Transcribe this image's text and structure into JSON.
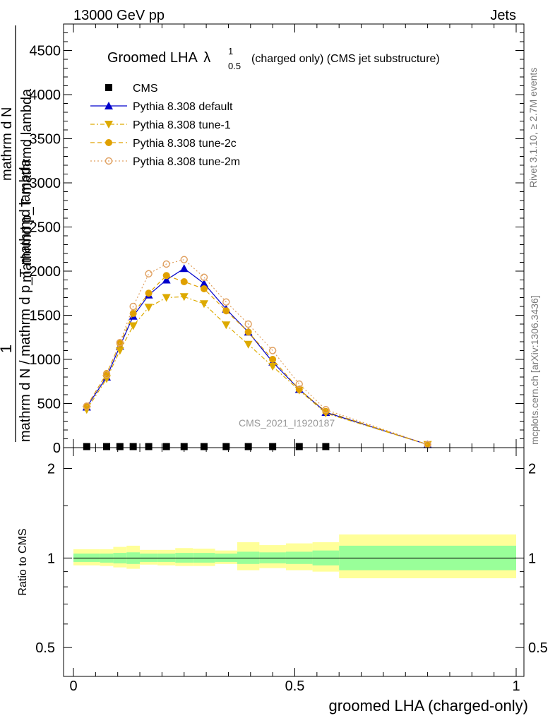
{
  "header": {
    "left": "13000 GeV pp",
    "right": "Jets"
  },
  "side_text": {
    "rivet": "Rivet 3.1.10, ≥ 2.7M events",
    "mcplots": "mcplots.cern.ch [arXiv:1306.3436]"
  },
  "watermark": "CMS_2021_I1920187",
  "chart_data": [
    {
      "type": "line",
      "title_main": "Groomed LHA",
      "title_symbol": "λ",
      "title_sup": "1",
      "title_sub": "0.5",
      "title_rest": "(charged only) (CMS jet substructure)",
      "ylabel_top": "1",
      "ylabel_den": "mathrm d N / mathrm d p_T mathrmd lambda",
      "ylabel_num": "mathrm d N",
      "ylabel_num_b": "mathrmd p_T mathrmd lambda",
      "ylim": [
        0,
        4800
      ],
      "yticks": [
        "0",
        "500",
        "1000",
        "1500",
        "2000",
        "2500",
        "3000",
        "3500",
        "4000",
        "4500"
      ],
      "ytick_values": [
        0,
        500,
        1000,
        1500,
        2000,
        2500,
        3000,
        3500,
        4000,
        4500
      ],
      "xlim": [
        0,
        1
      ],
      "legend_position": "top-left",
      "series": [
        {
          "name": "CMS",
          "color": "#000000",
          "marker": "square",
          "x": [
            0.03,
            0.075,
            0.105,
            0.135,
            0.17,
            0.21,
            0.25,
            0.295,
            0.345,
            0.395,
            0.45,
            0.51,
            0.57
          ],
          "values": [
            12,
            12,
            12,
            12,
            12,
            12,
            12,
            12,
            12,
            12,
            12,
            12,
            12
          ]
        },
        {
          "name": "Pythia 8.308 default",
          "color": "#0000cc",
          "marker": "triangle-up",
          "x": [
            0.03,
            0.075,
            0.105,
            0.135,
            0.17,
            0.21,
            0.25,
            0.295,
            0.345,
            0.395,
            0.45,
            0.51,
            0.57,
            0.8
          ],
          "values": [
            460,
            800,
            1150,
            1490,
            1730,
            1900,
            2030,
            1860,
            1570,
            1310,
            970,
            660,
            400,
            35
          ]
        },
        {
          "name": "Pythia 8.308 tune-1",
          "color": "#ddaa00",
          "marker": "triangle-down",
          "x": [
            0.03,
            0.075,
            0.105,
            0.135,
            0.17,
            0.21,
            0.25,
            0.295,
            0.345,
            0.395,
            0.45,
            0.51,
            0.57,
            0.8
          ],
          "values": [
            430,
            780,
            1100,
            1380,
            1590,
            1700,
            1710,
            1630,
            1390,
            1170,
            920,
            650,
            390,
            35
          ]
        },
        {
          "name": "Pythia 8.308 tune-2c",
          "color": "#e0a000",
          "marker": "circle",
          "x": [
            0.03,
            0.075,
            0.105,
            0.135,
            0.17,
            0.21,
            0.25,
            0.295,
            0.345,
            0.395,
            0.45,
            0.51,
            0.57,
            0.8
          ],
          "values": [
            470,
            840,
            1180,
            1520,
            1750,
            1950,
            1880,
            1800,
            1550,
            1310,
            1000,
            660,
            410,
            35
          ]
        },
        {
          "name": "Pythia 8.308 tune-2m",
          "color": "#e0a060",
          "marker": "circle-open",
          "x": [
            0.03,
            0.075,
            0.105,
            0.135,
            0.17,
            0.21,
            0.25,
            0.295,
            0.345,
            0.395,
            0.45,
            0.51,
            0.57,
            0.8
          ],
          "values": [
            470,
            830,
            1190,
            1600,
            1970,
            2080,
            2130,
            1930,
            1650,
            1400,
            1100,
            720,
            430,
            35
          ]
        }
      ]
    },
    {
      "type": "area",
      "ylabel": "Ratio to CMS",
      "xlabel": "groomed LHA (charged-only)",
      "ylim": [
        0.4,
        2.35
      ],
      "log_y": true,
      "yticks": [
        "0.5",
        "1",
        "2"
      ],
      "ytick_values": [
        0.5,
        1,
        2
      ],
      "xticks": [
        "0",
        "0.5",
        "1"
      ],
      "xtick_values": [
        0,
        0.5,
        1
      ],
      "xlim": [
        0,
        1
      ],
      "bands": {
        "edges": [
          0,
          0.06,
          0.09,
          0.12,
          0.15,
          0.19,
          0.23,
          0.27,
          0.32,
          0.37,
          0.42,
          0.48,
          0.54,
          0.6,
          1.0
        ],
        "inner_color": "#99ff99",
        "outer_color": "#ffff99",
        "inner_lo": [
          0.97,
          0.965,
          0.96,
          0.955,
          0.97,
          0.97,
          0.965,
          0.965,
          0.97,
          0.955,
          0.96,
          0.955,
          0.945,
          0.91
        ],
        "inner_hi": [
          1.035,
          1.035,
          1.04,
          1.045,
          1.035,
          1.035,
          1.04,
          1.04,
          1.035,
          1.05,
          1.045,
          1.05,
          1.06,
          1.1
        ],
        "outer_lo": [
          0.945,
          0.94,
          0.93,
          0.92,
          0.95,
          0.945,
          0.94,
          0.94,
          0.955,
          0.91,
          0.925,
          0.91,
          0.9,
          0.855
        ],
        "outer_hi": [
          1.07,
          1.07,
          1.09,
          1.1,
          1.065,
          1.065,
          1.08,
          1.075,
          1.06,
          1.13,
          1.105,
          1.12,
          1.13,
          1.2
        ]
      }
    }
  ]
}
